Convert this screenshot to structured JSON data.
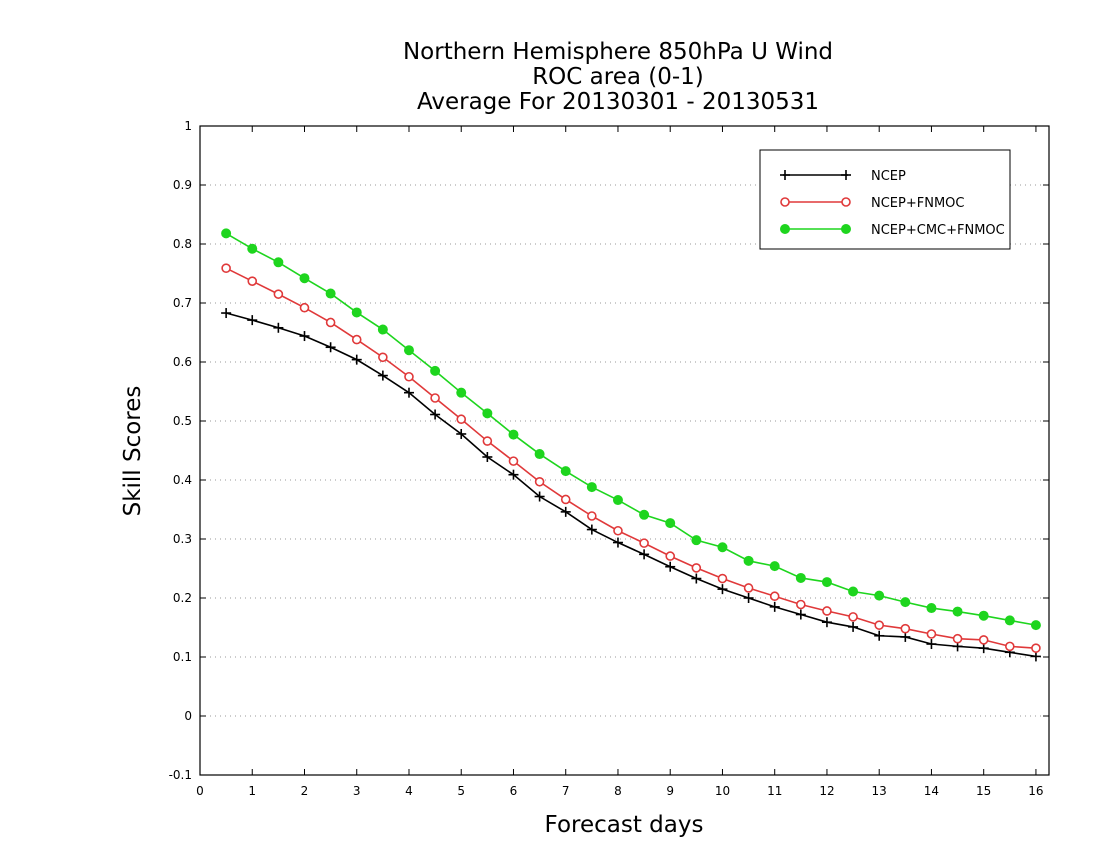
{
  "chart_data": {
    "type": "line",
    "title_lines": [
      "Northern Hemisphere 850hPa U Wind",
      "ROC area (0-1)",
      "Average For 20130301 - 20130531"
    ],
    "xlabel": "Forecast days",
    "ylabel": "Skill Scores",
    "xlim": [
      0,
      16.25
    ],
    "ylim": [
      -0.1,
      1
    ],
    "xticks": [
      0,
      1,
      2,
      3,
      4,
      5,
      6,
      7,
      8,
      9,
      10,
      11,
      12,
      13,
      14,
      15,
      16
    ],
    "yticks": [
      -0.1,
      0,
      0.1,
      0.2,
      0.3,
      0.4,
      0.5,
      0.6,
      0.7,
      0.8,
      0.9,
      1
    ],
    "ytick_labels": [
      "-0.1",
      "0",
      "0.1",
      "0.2",
      "0.3",
      "0.4",
      "0.5",
      "0.6",
      "0.7",
      "0.8",
      "0.9",
      "1"
    ],
    "grid": "horizontal dotted",
    "legend_position": "top-right",
    "x": [
      0.5,
      1,
      1.5,
      2,
      2.5,
      3,
      3.5,
      4,
      4.5,
      5,
      5.5,
      6,
      6.5,
      7,
      7.5,
      8,
      8.5,
      9,
      9.5,
      10,
      10.5,
      11,
      11.5,
      12,
      12.5,
      13,
      13.5,
      14,
      14.5,
      15,
      15.5,
      16
    ],
    "series": [
      {
        "name": "NCEP",
        "color": "#000000",
        "marker": "plus",
        "values": [
          0.683,
          0.671,
          0.658,
          0.644,
          0.625,
          0.604,
          0.577,
          0.548,
          0.511,
          0.478,
          0.439,
          0.409,
          0.372,
          0.346,
          0.316,
          0.294,
          0.274,
          0.253,
          0.233,
          0.215,
          0.2,
          0.185,
          0.172,
          0.159,
          0.151,
          0.136,
          0.134,
          0.122,
          0.118,
          0.115,
          0.108,
          0.101
        ]
      },
      {
        "name": "NCEP+FNMOC",
        "color": "#e0393a",
        "marker": "open-circle",
        "values": [
          0.759,
          0.737,
          0.715,
          0.692,
          0.667,
          0.638,
          0.608,
          0.575,
          0.539,
          0.503,
          0.466,
          0.432,
          0.397,
          0.367,
          0.339,
          0.314,
          0.293,
          0.271,
          0.251,
          0.233,
          0.217,
          0.203,
          0.189,
          0.178,
          0.168,
          0.154,
          0.148,
          0.139,
          0.131,
          0.129,
          0.118,
          0.115
        ]
      },
      {
        "name": "NCEP+CMC+FNMOC",
        "color": "#1ed51e",
        "marker": "filled-circle",
        "values": [
          0.818,
          0.792,
          0.769,
          0.742,
          0.716,
          0.684,
          0.655,
          0.62,
          0.585,
          0.548,
          0.513,
          0.477,
          0.444,
          0.415,
          0.388,
          0.366,
          0.341,
          0.327,
          0.298,
          0.286,
          0.263,
          0.254,
          0.234,
          0.227,
          0.211,
          0.204,
          0.193,
          0.183,
          0.177,
          0.17,
          0.162,
          0.154
        ]
      }
    ]
  }
}
